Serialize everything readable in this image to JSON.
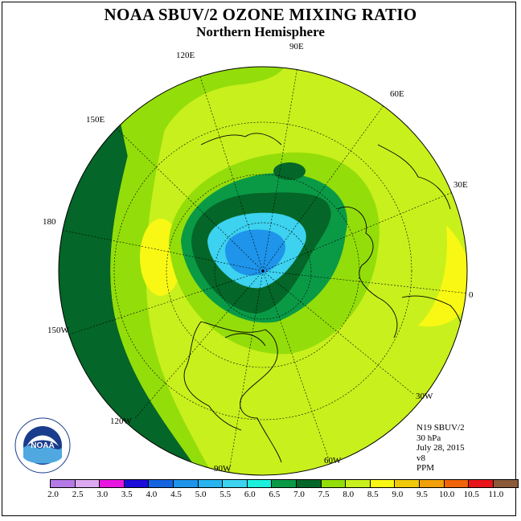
{
  "title": "NOAA SBUV/2 OZONE MIXING RATIO",
  "subtitle": "Northern Hemisphere",
  "longitude_labels": [
    "90E",
    "60E",
    "30E",
    "0",
    "30W",
    "60W",
    "90W",
    "120W",
    "150W",
    "180",
    "150E",
    "120E"
  ],
  "info_lines": [
    "N19 SBUV/2",
    "30 hPa",
    "July 28, 2015",
    "v8",
    "PPM"
  ],
  "logo": {
    "text": "NOAA",
    "ring_text": "NATIONAL OCEANIC AND ATMOSPHERIC ADMINISTRATION • U.S. DEPARTMENT OF COMMERCE"
  },
  "colorbar": {
    "unit": "PPM",
    "ticks": [
      "2.0",
      "2.5",
      "3.0",
      "3.5",
      "4.0",
      "4.5",
      "5.0",
      "5.5",
      "6.0",
      "6.5",
      "7.0",
      "7.5",
      "8.0",
      "8.5",
      "9.0",
      "9.5",
      "10.0",
      "10.5",
      "11.0"
    ],
    "colors": [
      "#b47ae6",
      "#dca9f0",
      "#e817e0",
      "#1a0dd9",
      "#1464e0",
      "#1e94ea",
      "#28b4ee",
      "#3cd2f0",
      "#1bf0dc",
      "#0a9a46",
      "#046628",
      "#93dd0a",
      "#c8f01c",
      "#f8f814",
      "#f0c80a",
      "#f0a00a",
      "#f0640a",
      "#e8141a",
      "#8a5a3a"
    ]
  },
  "legend_palette": {
    "green_dark": "#046628",
    "green_mid": "#0a9a46",
    "lime_green": "#93dd0a",
    "yellow_green": "#c8f01c",
    "yellow": "#f8f814",
    "cyan": "#3cd2f0",
    "light_blue": "#28b4ee",
    "blue": "#1e94ea"
  }
}
